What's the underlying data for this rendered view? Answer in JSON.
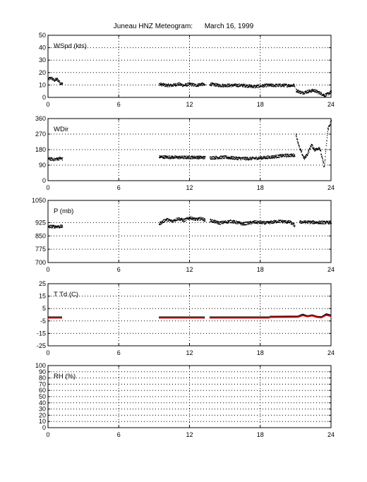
{
  "figure": {
    "title": "Juneau HNZ Meteogram:      March 16, 1999"
  },
  "chart_data": [
    {
      "type": "scatter",
      "label": "WSpd (kts)",
      "xlim": [
        0,
        24
      ],
      "ylim": [
        0,
        50
      ],
      "xticks": [
        0,
        6,
        12,
        18,
        24
      ],
      "yticks": [
        0,
        10,
        20,
        30,
        40,
        50
      ],
      "grid": true,
      "segments": [
        {
          "x": [
            0,
            0.25,
            0.5,
            0.75,
            1.0,
            1.2
          ],
          "y": [
            15,
            16,
            14,
            15,
            12,
            11
          ]
        },
        {
          "x": [
            9.4,
            10,
            10.5,
            11,
            11.5,
            12,
            12.5,
            13,
            13.3
          ],
          "y": [
            11,
            10,
            10,
            11,
            10,
            11,
            10,
            11,
            10
          ]
        },
        {
          "x": [
            13.7,
            14.5,
            15.5,
            16.5,
            17.5,
            18.5,
            19.5,
            20.5,
            20.9
          ],
          "y": [
            11,
            10,
            10,
            10,
            9,
            10,
            10,
            10,
            10
          ]
        },
        {
          "x": [
            21,
            21.5,
            22,
            22.5,
            23,
            23.4,
            23.7,
            24
          ],
          "y": [
            6,
            4,
            5,
            6,
            4,
            2,
            3,
            5
          ]
        }
      ]
    },
    {
      "type": "scatter",
      "label": "WDir",
      "xlim": [
        0,
        24
      ],
      "ylim": [
        0,
        360
      ],
      "xticks": [
        0,
        6,
        12,
        18,
        24
      ],
      "yticks": [
        0,
        90,
        180,
        270,
        360
      ],
      "grid": true,
      "segments": [
        {
          "x": [
            0,
            0.5,
            1.0,
            1.2
          ],
          "y": [
            130,
            125,
            132,
            128
          ]
        },
        {
          "x": [
            9.4,
            10.5,
            11.5,
            12.5,
            13.3
          ],
          "y": [
            140,
            138,
            137,
            138,
            136
          ]
        },
        {
          "x": [
            13.7,
            15,
            16,
            17,
            18,
            19,
            20,
            20.9
          ],
          "y": [
            135,
            138,
            132,
            130,
            134,
            140,
            148,
            150
          ]
        },
        {
          "x": [
            21,
            21.3,
            21.7,
            22,
            22.3,
            22.6,
            23,
            23.4,
            23.7,
            24
          ],
          "y": [
            270,
            190,
            130,
            160,
            210,
            180,
            195,
            80,
            300,
            350
          ]
        }
      ]
    },
    {
      "type": "scatter",
      "label": "P (mb)",
      "xlim": [
        0,
        24
      ],
      "ylim": [
        700,
        1050
      ],
      "xticks": [
        0,
        6,
        12,
        18,
        24
      ],
      "yticks": [
        700,
        775,
        850,
        925,
        1050
      ],
      "grid": true,
      "segments": [
        {
          "x": [
            0,
            0.5,
            1.0,
            1.2
          ],
          "y": [
            905,
            905,
            905,
            905
          ]
        },
        {
          "x": [
            9.4,
            10,
            10.5,
            11,
            11.5,
            12,
            12.5,
            13,
            13.3
          ],
          "y": [
            920,
            945,
            935,
            950,
            940,
            955,
            945,
            950,
            940
          ]
        },
        {
          "x": [
            13.7,
            14.5,
            15.5,
            16.5,
            17.5,
            18.5,
            19.5,
            20.5,
            20.9
          ],
          "y": [
            940,
            925,
            935,
            920,
            930,
            925,
            935,
            930,
            910
          ]
        },
        {
          "x": [
            21.3,
            22,
            23,
            24
          ],
          "y": [
            930,
            930,
            928,
            928
          ]
        }
      ]
    },
    {
      "type": "line",
      "label": "T Td (C)",
      "xlim": [
        0,
        24
      ],
      "ylim": [
        -25,
        25
      ],
      "xticks": [
        0,
        6,
        12,
        18,
        24
      ],
      "yticks": [
        -25,
        -15,
        -5,
        5,
        15,
        25
      ],
      "grid": true,
      "series": [
        {
          "segments": [
            {
              "x": [
                0,
                1.2
              ],
              "y": [
                -2,
                -2
              ]
            },
            {
              "x": [
                9.4,
                13.3
              ],
              "y": [
                -2,
                -2
              ]
            },
            {
              "x": [
                13.7,
                18.8
              ],
              "y": [
                -2,
                -2
              ]
            },
            {
              "x": [
                18.8,
                21.2,
                21.6,
                22,
                22.4,
                22.8,
                23.2,
                23.6,
                24
              ],
              "y": [
                -1.5,
                -1.3,
                0.2,
                -1.0,
                -0.3,
                -1.5,
                -1.8,
                0.5,
                -0.5
              ]
            }
          ]
        },
        {
          "segments": [
            {
              "x": [
                0,
                1.2
              ],
              "y": [
                -2.5,
                -2.5
              ]
            },
            {
              "x": [
                9.4,
                13.3
              ],
              "y": [
                -2.5,
                -2.5
              ]
            },
            {
              "x": [
                13.7,
                18.8
              ],
              "y": [
                -2.5,
                -2.5
              ]
            },
            {
              "x": [
                18.8,
                21.2,
                21.6,
                22,
                22.4,
                22.8,
                23.2,
                23.6,
                24
              ],
              "y": [
                -2,
                -1.8,
                -0.5,
                -1.5,
                -0.8,
                -2,
                -2.3,
                -0.2,
                -1.2
              ]
            }
          ]
        }
      ]
    },
    {
      "type": "scatter",
      "label": "RH (%)",
      "xlim": [
        0,
        24
      ],
      "ylim": [
        0,
        100
      ],
      "xticks": [
        0,
        6,
        12,
        18,
        24
      ],
      "yticks": [
        0,
        10,
        20,
        30,
        40,
        50,
        60,
        70,
        80,
        90,
        100
      ],
      "grid": true,
      "segments": []
    }
  ],
  "colors": {
    "scatter": "#000000",
    "temp_line": "#000000",
    "dewpoint_line": "#cc0000",
    "grid": "#000000",
    "axes": "#000000"
  }
}
